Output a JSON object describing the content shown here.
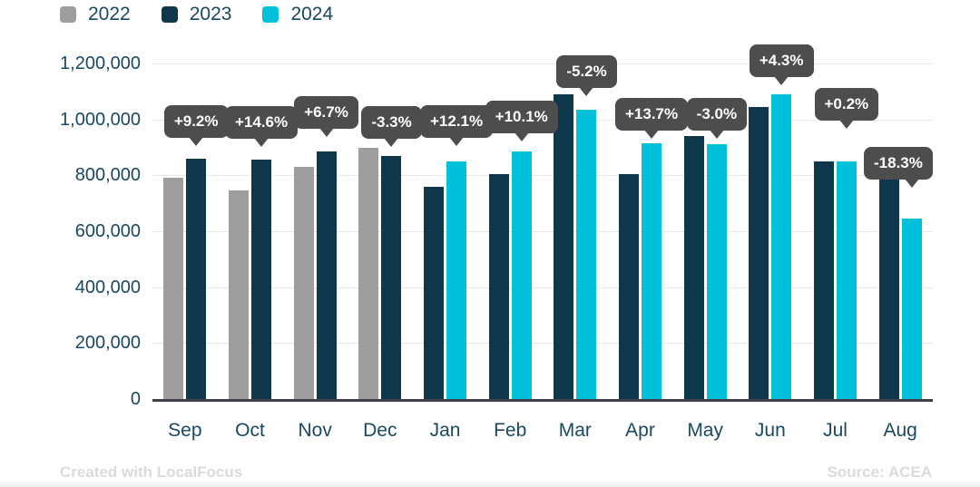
{
  "legend": [
    {
      "label": "2022",
      "color": "#9e9e9e"
    },
    {
      "label": "2023",
      "color": "#0e374c"
    },
    {
      "label": "2024",
      "color": "#00c0dc"
    }
  ],
  "footer": {
    "left": "Created with LocalFocus",
    "right": "Source: ACEA"
  },
  "colors": {
    "tooltip_bg": "#4d4d4d",
    "tooltip_text": "#ffffff",
    "axis_text": "#1a4860",
    "gridline": "#e7e7e7",
    "baseline": "#3f3f46"
  },
  "chart_data": {
    "type": "bar",
    "title": "",
    "xlabel": "",
    "ylabel": "",
    "categories": [
      "Sep",
      "Oct",
      "Nov",
      "Dec",
      "Jan",
      "Feb",
      "Mar",
      "Apr",
      "May",
      "Jun",
      "Jul",
      "Aug"
    ],
    "series": [
      {
        "name": "2022",
        "color": "#9e9e9e",
        "values": [
          790000,
          745000,
          830000,
          900000,
          null,
          null,
          null,
          null,
          null,
          null,
          null,
          null
        ]
      },
      {
        "name": "2023",
        "color": "#0e374c",
        "values": [
          860000,
          855000,
          885000,
          870000,
          760000,
          805000,
          1090000,
          805000,
          940000,
          1045000,
          850000,
          790000
        ]
      },
      {
        "name": "2024",
        "color": "#00c0dc",
        "values": [
          null,
          null,
          null,
          null,
          850000,
          885000,
          1035000,
          915000,
          910000,
          1090000,
          850000,
          645000
        ]
      }
    ],
    "point_labels": [
      "+9.2%",
      "+14.6%",
      "+6.7%",
      "-3.3%",
      "+12.1%",
      "+10.1%",
      "-5.2%",
      "+13.7%",
      "-3.0%",
      "+4.3%",
      "+0.2%",
      "-18.3%"
    ],
    "ylim": [
      0,
      1200000
    ],
    "yticks": [
      "0",
      "200,000",
      "400,000",
      "600,000",
      "800,000",
      "1,000,000",
      "1,200,000"
    ],
    "grid": true,
    "legend_position": "top-left"
  }
}
